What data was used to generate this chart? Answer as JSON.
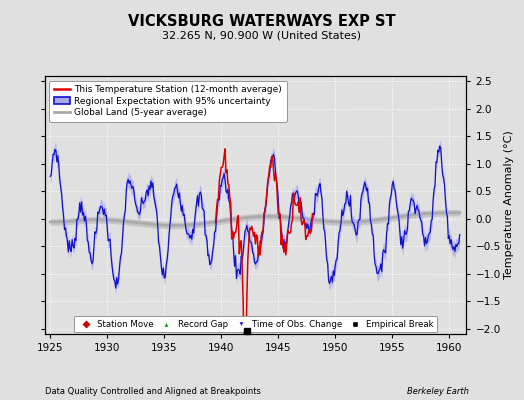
{
  "title": "VICKSBURG WATERWAYS EXP ST",
  "subtitle": "32.265 N, 90.900 W (United States)",
  "ylabel": "Temperature Anomaly (°C)",
  "xlabel_left": "Data Quality Controlled and Aligned at Breakpoints",
  "xlabel_right": "Berkeley Earth",
  "ylim": [
    -2.1,
    2.6
  ],
  "xlim": [
    1924.5,
    1961.5
  ],
  "yticks": [
    -2,
    -1.5,
    -1,
    -0.5,
    0,
    0.5,
    1,
    1.5,
    2,
    2.5
  ],
  "xticks": [
    1925,
    1930,
    1935,
    1940,
    1945,
    1950,
    1955,
    1960
  ],
  "background_color": "#e0e0e0",
  "plot_bg_color": "#e0e0e0",
  "grid_color": "#ffffff",
  "station_color": "#dd0000",
  "regional_color": "#1111cc",
  "regional_fill_color": "#aaaaee",
  "global_color": "#aaaaaa",
  "empirical_break_x": 1942.3,
  "empirical_break_y": -2.05
}
